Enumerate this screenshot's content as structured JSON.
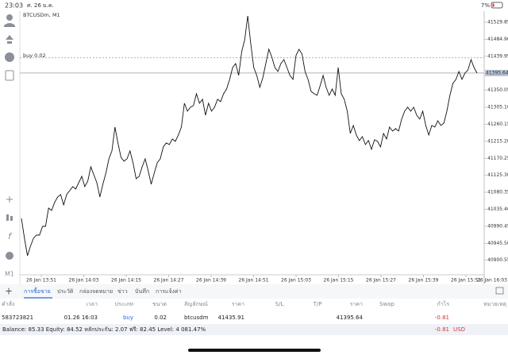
{
  "status_bar": {
    "time": "23:03",
    "date": "ศ. 26 ม.ค.",
    "battery": "7%"
  },
  "chart": {
    "type": "line",
    "symbol": "BTCUSDm, M1",
    "timeframe": "M1",
    "order_label": "buy 0.02",
    "current_price": 41395.64,
    "ylim": [
      40853.7,
      41559.3
    ],
    "yticks": [
      41529.85,
      {
        "value": 41484.9,
        "label": "41484.90"
      },
      41439.95,
      41350.05,
      {
        "value": 41305.1,
        "label": "41305.10"
      },
      41260.15,
      {
        "value": 41215.2,
        "label": "41215.20"
      },
      41170.25,
      {
        "value": 41125.3,
        "label": "41125.30"
      },
      41080.35,
      {
        "value": 41035.4,
        "label": "41035.40"
      },
      40990.45,
      {
        "value": 40945.5,
        "label": "40945.50"
      },
      40900.55
    ],
    "x_labels": [
      "26 Jan 13:51",
      "26 Jan 14:03",
      "26 Jan 14:15",
      "26 Jan 14:27",
      "26 Jan 14:39",
      "26 Jan 14:51",
      "26 Jan 15:03",
      "26 Jan 15:15",
      "26 Jan 15:27",
      "26 Jan 15:39",
      "26 Jan 15:51",
      "26 Jan 16:03"
    ],
    "values": [
      41011.2,
      40958.7,
      40912.5,
      40937.7,
      40958.7,
      40967.1,
      40967.1,
      40990.2,
      40990.2,
      41038.5,
      41032.2,
      41053.2,
      41067.9,
      41074.2,
      41046.9,
      41074.2,
      41084.7,
      41095.2,
      41088.9,
      41105.7,
      41122.5,
      41095.2,
      41109.9,
      41147.7,
      41126.7,
      41105.7,
      41067.9,
      41101.5,
      41130.9,
      41168.7,
      41189.7,
      41252.7,
      41210.7,
      41172.9,
      41162.4,
      41168.7,
      41189.7,
      41158.2,
      41116.2,
      41122.5,
      41147.7,
      41168.7,
      41137.2,
      41101.5,
      41130.9,
      41158.2,
      41168.7,
      41200.2,
      41210.7,
      41206.5,
      41221.2,
      41214.9,
      41231.7,
      41252.7,
      41315.7,
      41294.7,
      41305.2,
      41309.4,
      41340.9,
      41315.7,
      41326.2,
      41284.2,
      41315.7,
      41294.7,
      41305.2,
      41326.2,
      41319.9,
      41340.9,
      41353.5,
      41378.7,
      41410.2,
      41420.7,
      41389.2,
      41452.2,
      41483.7,
      41546.7,
      41473.2,
      41410.2,
      41389.2,
      41357.7,
      41382.9,
      41420.7,
      41458.5,
      41437.5,
      41410.2,
      41399.7,
      41420.7,
      41431.2,
      41410.2,
      41389.2,
      41378.7,
      41441.7,
      41458.5,
      41445.9,
      41399.7,
      41378.7,
      41347.2,
      41340.9,
      41336.7,
      41361.9,
      41389.2,
      41357.7,
      41336.7,
      41353.5,
      41336.7,
      41410.2,
      41340.9,
      41326.2,
      41294.7,
      41235.9,
      41256.9,
      41231.7,
      41217.0,
      41227.5,
      41206.5,
      41217.0,
      41193.9,
      41219.1,
      41214.9,
      41200.2,
      41235.9,
      41221.2,
      41252.7,
      41242.2,
      41248.5,
      41242.2,
      41273.7,
      41294.7,
      41305.2,
      41294.7,
      41305.2,
      41284.2,
      41273.7,
      41294.7,
      41256.9,
      41231.7,
      41256.9,
      41252.7,
      41269.5,
      41256.9,
      41263.2,
      41294.7,
      41336.7,
      41368.2,
      41378.7,
      41399.7,
      41378.7,
      41395.5,
      41403.9,
      41431.2,
      41410.2,
      41395.5
    ]
  },
  "tabs": [
    "การซื้อขาย",
    "ประวัติ",
    "กล่องจดหมาย",
    "ข่าว",
    "บันทึก",
    "การแจ้งค่า"
  ],
  "table": {
    "headers": [
      "คำสั่ง",
      "เวลา",
      "ประเภท",
      "ขนาด",
      "สัญลักษณ์",
      "ราคา",
      "S/L",
      "T/P",
      "ราคา",
      "Swap",
      "กำไร",
      "หมายเหตุ"
    ],
    "rows": [
      {
        "order": "583723821",
        "time": "01.26 16:03",
        "type": "buy",
        "volume": 0.02,
        "symbol": "btcusdm",
        "price_open": 41435.91,
        "price_current": 41395.64,
        "profit": -0.81
      }
    ]
  },
  "footer": {
    "summary": "Balance: 85.33 Equity: 84.52 หลักประกัน: 2.07 ฟรี: 82.45 Level: 4 081.47%",
    "profit": -0.81,
    "currency": "USD"
  }
}
